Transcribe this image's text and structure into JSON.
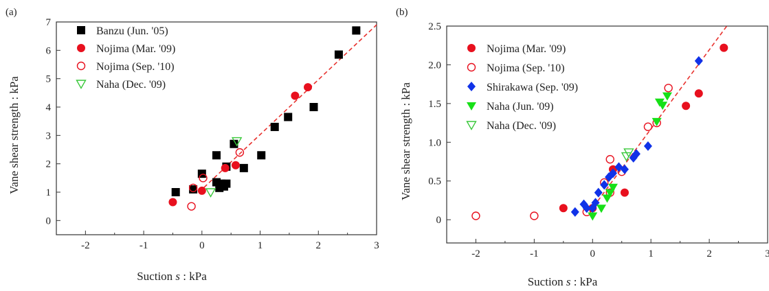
{
  "chart_data": [
    {
      "type": "scatter",
      "panel_label": "(a)",
      "xlabel_prefix": "Suction ",
      "xlabel_var": "s",
      "xlabel_suffix": " : kPa",
      "ylabel": "Vane shear strength : kPa",
      "xlim": [
        -2.5,
        3
      ],
      "ylim": [
        -0.5,
        7
      ],
      "xticks": [
        -2,
        -1,
        0,
        1,
        2,
        3
      ],
      "yticks": [
        0,
        1,
        2,
        3,
        4,
        5,
        6,
        7
      ],
      "grid": false,
      "legend_position": "top-left",
      "trend_line": {
        "color": "#e8322e",
        "points": [
          [
            -0.05,
            1.0
          ],
          [
            3.0,
            6.9
          ]
        ]
      },
      "series": [
        {
          "name": "Banzu (Jun. '05)",
          "marker": "square-filled",
          "color": "#000000",
          "points": [
            [
              -0.45,
              1.0
            ],
            [
              -0.15,
              1.1
            ],
            [
              0.0,
              1.65
            ],
            [
              0.25,
              2.3
            ],
            [
              0.25,
              1.35
            ],
            [
              0.3,
              1.15
            ],
            [
              0.33,
              1.3
            ],
            [
              0.38,
              1.2
            ],
            [
              0.42,
              1.3
            ],
            [
              0.42,
              1.9
            ],
            [
              0.55,
              2.7
            ],
            [
              0.72,
              1.85
            ],
            [
              1.02,
              2.3
            ],
            [
              1.25,
              3.3
            ],
            [
              1.48,
              3.65
            ],
            [
              1.92,
              4.0
            ],
            [
              2.35,
              5.85
            ],
            [
              2.65,
              6.7
            ]
          ]
        },
        {
          "name": "Nojima (Mar. '09)",
          "marker": "circle-filled",
          "color": "#e8101e",
          "points": [
            [
              -0.5,
              0.65
            ],
            [
              0.0,
              1.05
            ],
            [
              0.4,
              1.85
            ],
            [
              0.58,
              1.95
            ],
            [
              1.6,
              4.4
            ],
            [
              1.82,
              4.7
            ]
          ]
        },
        {
          "name": "Nojima (Sep. '10)",
          "marker": "circle-open",
          "color": "#e8101e",
          "points": [
            [
              -0.18,
              0.5
            ],
            [
              -0.15,
              1.15
            ],
            [
              0.02,
              1.5
            ],
            [
              0.65,
              2.4
            ]
          ]
        },
        {
          "name": "Naha (Dec. '09)",
          "marker": "triangle-down-open",
          "color": "#39c83a",
          "points": [
            [
              0.15,
              1.0
            ],
            [
              0.6,
              2.8
            ]
          ]
        }
      ]
    },
    {
      "type": "scatter",
      "panel_label": "(b)",
      "xlabel_prefix": "Suction ",
      "xlabel_var": "s",
      "xlabel_suffix": " : kPa",
      "ylabel": "Vane shear strength : kPa",
      "xlim": [
        -2.5,
        3
      ],
      "ylim": [
        -0.3,
        2.5
      ],
      "xticks": [
        -2,
        -1,
        0,
        1,
        2,
        3
      ],
      "yticks": [
        0.0,
        0.5,
        1.0,
        1.5,
        2.0,
        2.5
      ],
      "ytick_labels": [
        "0",
        "0.5",
        "1.0",
        "1.5",
        "2.0",
        "2.5"
      ],
      "grid": false,
      "legend_position": "top-left",
      "trend_line": {
        "color": "#e8322e",
        "points": [
          [
            -0.05,
            0.1
          ],
          [
            2.3,
            2.5
          ]
        ]
      },
      "series": [
        {
          "name": "Nojima (Mar. '09)",
          "marker": "circle-filled",
          "color": "#e8101e",
          "points": [
            [
              -0.5,
              0.15
            ],
            [
              0.0,
              0.15
            ],
            [
              0.35,
              0.65
            ],
            [
              0.55,
              0.35
            ],
            [
              1.6,
              1.47
            ],
            [
              1.82,
              1.63
            ],
            [
              2.25,
              2.22
            ]
          ]
        },
        {
          "name": "Nojima (Sep. '10)",
          "marker": "circle-open",
          "color": "#e8101e",
          "points": [
            [
              -2.0,
              0.05
            ],
            [
              -1.0,
              0.05
            ],
            [
              -0.1,
              0.1
            ],
            [
              0.2,
              0.48
            ],
            [
              0.3,
              0.78
            ],
            [
              0.5,
              0.62
            ],
            [
              0.95,
              1.2
            ],
            [
              1.1,
              1.25
            ],
            [
              1.3,
              1.7
            ],
            [
              0.3,
              0.35
            ]
          ]
        },
        {
          "name": "Shirakawa (Sep. '09)",
          "marker": "diamond-filled",
          "color": "#1032e8",
          "points": [
            [
              -0.3,
              0.1
            ],
            [
              -0.15,
              0.2
            ],
            [
              -0.1,
              0.15
            ],
            [
              0.0,
              0.15
            ],
            [
              0.05,
              0.22
            ],
            [
              0.1,
              0.35
            ],
            [
              0.2,
              0.45
            ],
            [
              0.28,
              0.55
            ],
            [
              0.35,
              0.6
            ],
            [
              0.45,
              0.68
            ],
            [
              0.55,
              0.65
            ],
            [
              0.7,
              0.8
            ],
            [
              0.75,
              0.85
            ],
            [
              0.95,
              0.95
            ],
            [
              1.82,
              2.05
            ]
          ]
        },
        {
          "name": "Naha (Jun. '09)",
          "marker": "triangle-down-filled",
          "color": "#17e017",
          "points": [
            [
              0.0,
              0.05
            ],
            [
              0.15,
              0.15
            ],
            [
              0.25,
              0.28
            ],
            [
              0.3,
              0.35
            ],
            [
              0.35,
              0.42
            ],
            [
              1.1,
              1.27
            ],
            [
              1.15,
              1.52
            ],
            [
              1.2,
              1.48
            ],
            [
              1.28,
              1.6
            ]
          ]
        },
        {
          "name": "Naha (Dec. '09)",
          "marker": "triangle-down-open",
          "color": "#39c83a",
          "points": [
            [
              0.58,
              0.82
            ],
            [
              0.62,
              0.87
            ]
          ]
        }
      ]
    }
  ]
}
